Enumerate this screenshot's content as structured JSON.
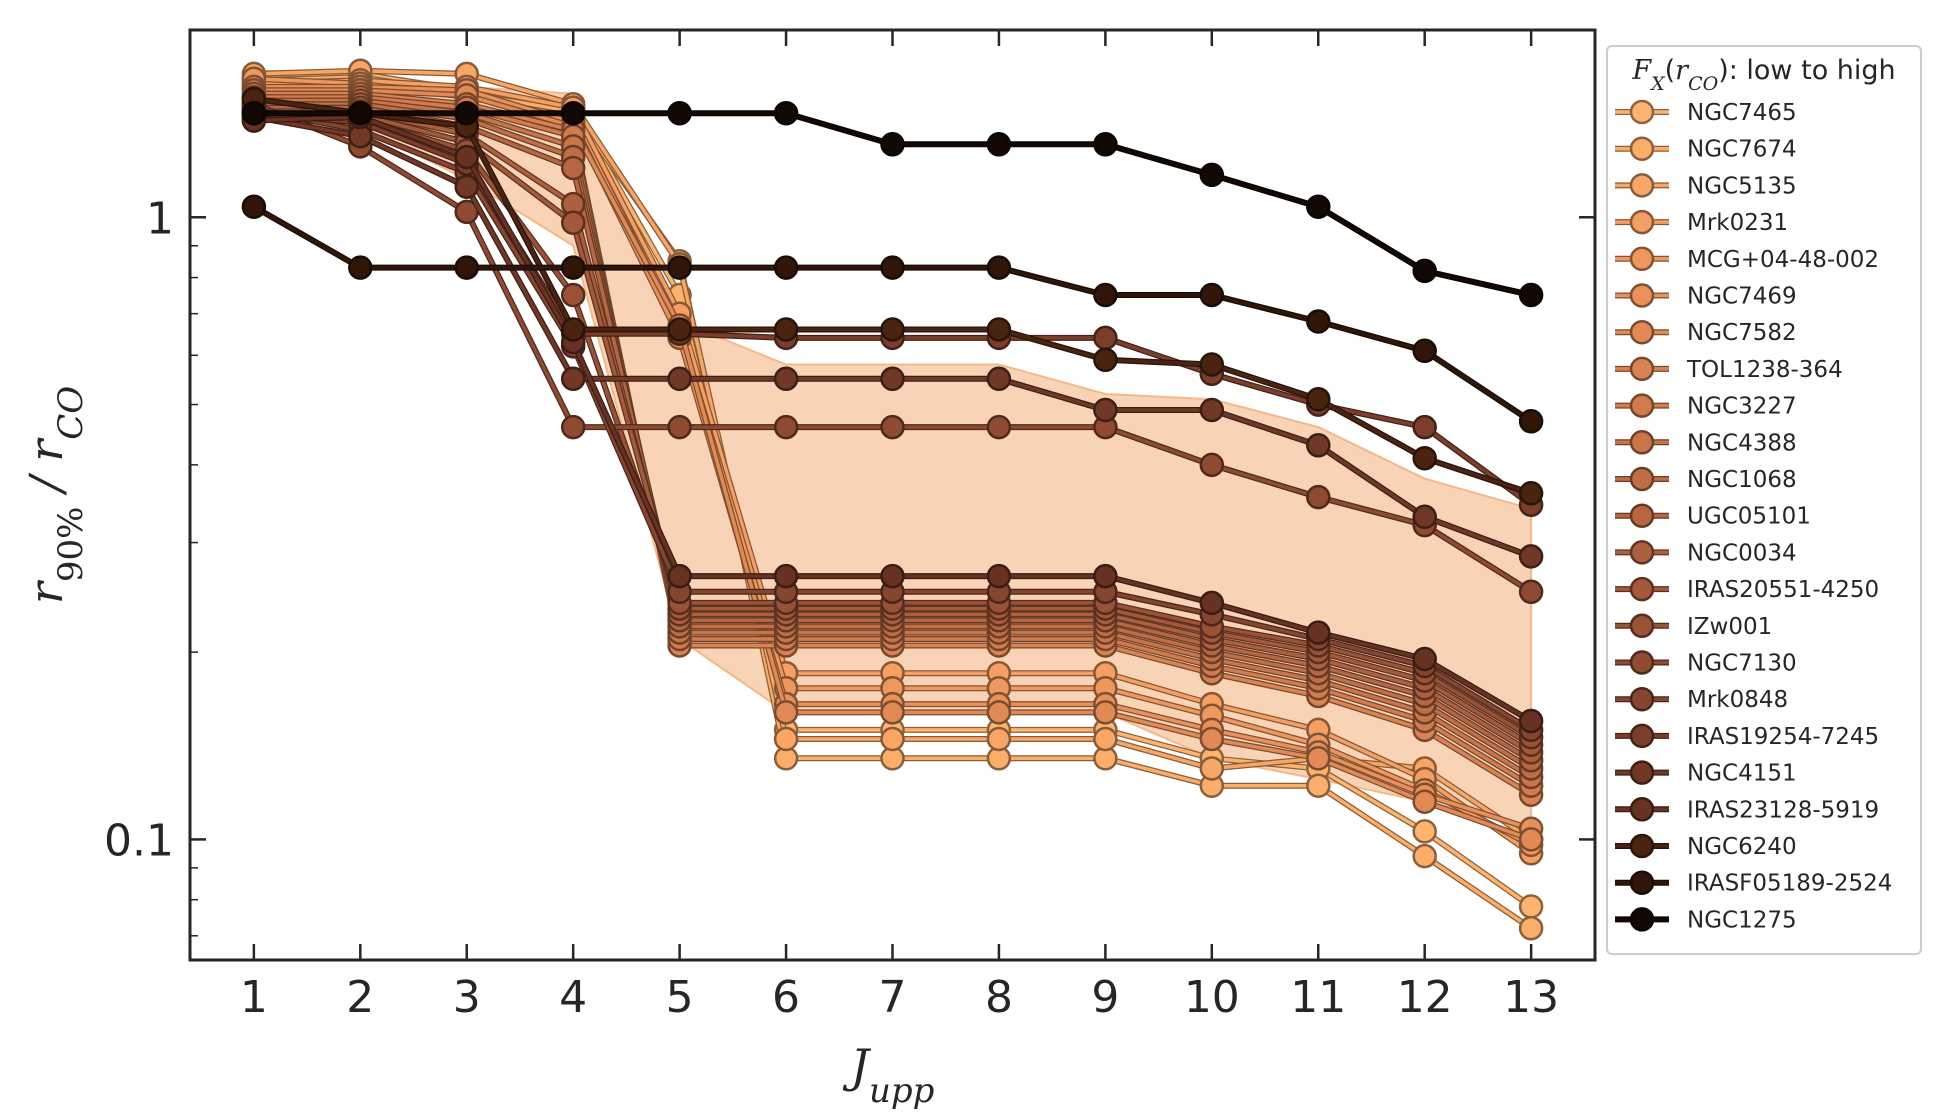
{
  "chart_data": {
    "type": "line",
    "xlabel": "J_upp",
    "ylabel": "r_90% / r_CO",
    "y_scale": "log",
    "ylim": [
      0.064,
      2.0
    ],
    "xlim": [
      0.4,
      13.6
    ],
    "x": [
      1,
      2,
      3,
      4,
      5,
      6,
      7,
      8,
      9,
      10,
      11,
      12,
      13
    ],
    "yticks": [
      {
        "value": 1,
        "label": "1"
      },
      {
        "value": 0.1,
        "label": "0.1"
      }
    ],
    "grid": false,
    "legend": {
      "title": "F_X(r_CO): low to high",
      "position": "outside-right"
    },
    "band": {
      "color": "#f8cba8",
      "upper": [
        1.72,
        1.7,
        1.62,
        1.58,
        0.68,
        0.58,
        0.58,
        0.58,
        0.52,
        0.51,
        0.46,
        0.38,
        0.34
      ],
      "lower": [
        1.48,
        1.4,
        1.15,
        0.9,
        0.21,
        0.16,
        0.16,
        0.16,
        0.16,
        0.135,
        0.125,
        0.115,
        0.105
      ]
    },
    "series": [
      {
        "name": "NGC7465",
        "color": "#fdb46e",
        "values": [
          1.68,
          1.7,
          1.6,
          1.5,
          0.75,
          0.15,
          0.15,
          0.15,
          0.15,
          0.135,
          0.13,
          0.103,
          0.078
        ]
      },
      {
        "name": "NGC7674",
        "color": "#fbad6a",
        "values": [
          1.66,
          1.68,
          1.58,
          1.48,
          0.85,
          0.135,
          0.135,
          0.135,
          0.135,
          0.122,
          0.122,
          0.094,
          0.072
        ]
      },
      {
        "name": "NGC5135",
        "color": "#f8a666",
        "values": [
          1.7,
          1.72,
          1.7,
          1.52,
          0.84,
          0.145,
          0.145,
          0.145,
          0.145,
          0.13,
          0.135,
          0.13,
          0.1
        ]
      },
      {
        "name": "Mrk0231",
        "color": "#f59f62",
        "values": [
          1.64,
          1.66,
          1.62,
          1.5,
          0.7,
          0.185,
          0.185,
          0.185,
          0.185,
          0.165,
          0.15,
          0.125,
          0.095
        ]
      },
      {
        "name": "MCG+04-48-002",
        "color": "#ef985e",
        "values": [
          1.67,
          1.64,
          1.56,
          1.45,
          0.66,
          0.175,
          0.175,
          0.175,
          0.175,
          0.158,
          0.142,
          0.12,
          0.098
        ]
      },
      {
        "name": "NGC7469",
        "color": "#e9915a",
        "values": [
          1.62,
          1.62,
          1.6,
          1.42,
          0.64,
          0.165,
          0.165,
          0.165,
          0.165,
          0.15,
          0.138,
          0.118,
          0.104
        ]
      },
      {
        "name": "NGC7582",
        "color": "#e28a56",
        "values": [
          1.6,
          1.6,
          1.57,
          1.4,
          0.67,
          0.16,
          0.16,
          0.16,
          0.16,
          0.145,
          0.135,
          0.115,
          0.1
        ]
      },
      {
        "name": "TOL1238-364",
        "color": "#da8352",
        "values": [
          1.58,
          1.58,
          1.52,
          1.38,
          0.205,
          0.205,
          0.205,
          0.205,
          0.205,
          0.185,
          0.17,
          0.15,
          0.118
        ]
      },
      {
        "name": "NGC3227",
        "color": "#d27c4e",
        "values": [
          1.56,
          1.56,
          1.5,
          1.35,
          0.21,
          0.21,
          0.21,
          0.21,
          0.21,
          0.19,
          0.175,
          0.155,
          0.122
        ]
      },
      {
        "name": "NGC4388",
        "color": "#c9754a",
        "values": [
          1.54,
          1.54,
          1.47,
          1.3,
          0.215,
          0.215,
          0.215,
          0.215,
          0.215,
          0.195,
          0.18,
          0.16,
          0.126
        ]
      },
      {
        "name": "NGC1068",
        "color": "#c06e46",
        "values": [
          1.52,
          1.52,
          1.44,
          1.25,
          0.22,
          0.22,
          0.22,
          0.22,
          0.22,
          0.2,
          0.185,
          0.165,
          0.13
        ]
      },
      {
        "name": "UGC05101",
        "color": "#b66742",
        "values": [
          1.5,
          1.5,
          1.4,
          1.2,
          0.225,
          0.225,
          0.225,
          0.225,
          0.225,
          0.205,
          0.19,
          0.17,
          0.134
        ]
      },
      {
        "name": "NGC0034",
        "color": "#ad603e",
        "values": [
          1.48,
          1.48,
          1.36,
          1.05,
          0.23,
          0.23,
          0.23,
          0.23,
          0.23,
          0.21,
          0.195,
          0.175,
          0.138
        ]
      },
      {
        "name": "IRAS20551-4250",
        "color": "#a3593a",
        "values": [
          1.46,
          1.46,
          1.32,
          0.98,
          0.235,
          0.235,
          0.235,
          0.235,
          0.235,
          0.215,
          0.2,
          0.18,
          0.142
        ]
      },
      {
        "name": "IZw001",
        "color": "#995236",
        "values": [
          1.44,
          1.44,
          1.28,
          0.75,
          0.24,
          0.24,
          0.24,
          0.24,
          0.24,
          0.22,
          0.205,
          0.185,
          0.146
        ]
      },
      {
        "name": "NGC7130",
        "color": "#8f4b32",
        "values": [
          1.52,
          1.3,
          1.02,
          0.46,
          0.46,
          0.46,
          0.46,
          0.46,
          0.46,
          0.4,
          0.355,
          0.32,
          0.25
        ]
      },
      {
        "name": "Mrk0848",
        "color": "#85452e",
        "values": [
          1.49,
          1.38,
          1.18,
          0.62,
          0.25,
          0.25,
          0.25,
          0.25,
          0.25,
          0.23,
          0.21,
          0.19,
          0.15
        ]
      },
      {
        "name": "IRAS19254-7245",
        "color": "#7b3e2a",
        "values": [
          1.47,
          1.42,
          1.22,
          0.65,
          0.65,
          0.64,
          0.64,
          0.64,
          0.64,
          0.56,
          0.5,
          0.46,
          0.345
        ]
      },
      {
        "name": "NGC4151",
        "color": "#713826",
        "values": [
          1.45,
          1.35,
          1.12,
          0.55,
          0.55,
          0.55,
          0.55,
          0.55,
          0.49,
          0.49,
          0.43,
          0.33,
          0.285
        ]
      },
      {
        "name": "IRAS23128-5919",
        "color": "#673222",
        "values": [
          1.43,
          1.45,
          1.25,
          0.63,
          0.265,
          0.265,
          0.265,
          0.265,
          0.265,
          0.24,
          0.215,
          0.195,
          0.155
        ]
      },
      {
        "name": "NGC6240",
        "color": "#4a2411",
        "values": [
          1.55,
          1.47,
          1.4,
          0.66,
          0.66,
          0.66,
          0.66,
          0.66,
          0.59,
          0.58,
          0.51,
          0.41,
          0.36
        ]
      },
      {
        "name": "IRASF05189-2524",
        "color": "#2f1608",
        "values": [
          1.04,
          0.83,
          0.83,
          0.83,
          0.83,
          0.83,
          0.83,
          0.83,
          0.75,
          0.75,
          0.68,
          0.61,
          0.47
        ]
      },
      {
        "name": "NGC1275",
        "color": "#120804",
        "values": [
          1.47,
          1.47,
          1.47,
          1.47,
          1.47,
          1.47,
          1.31,
          1.31,
          1.31,
          1.17,
          1.04,
          0.82,
          0.75
        ]
      }
    ]
  }
}
